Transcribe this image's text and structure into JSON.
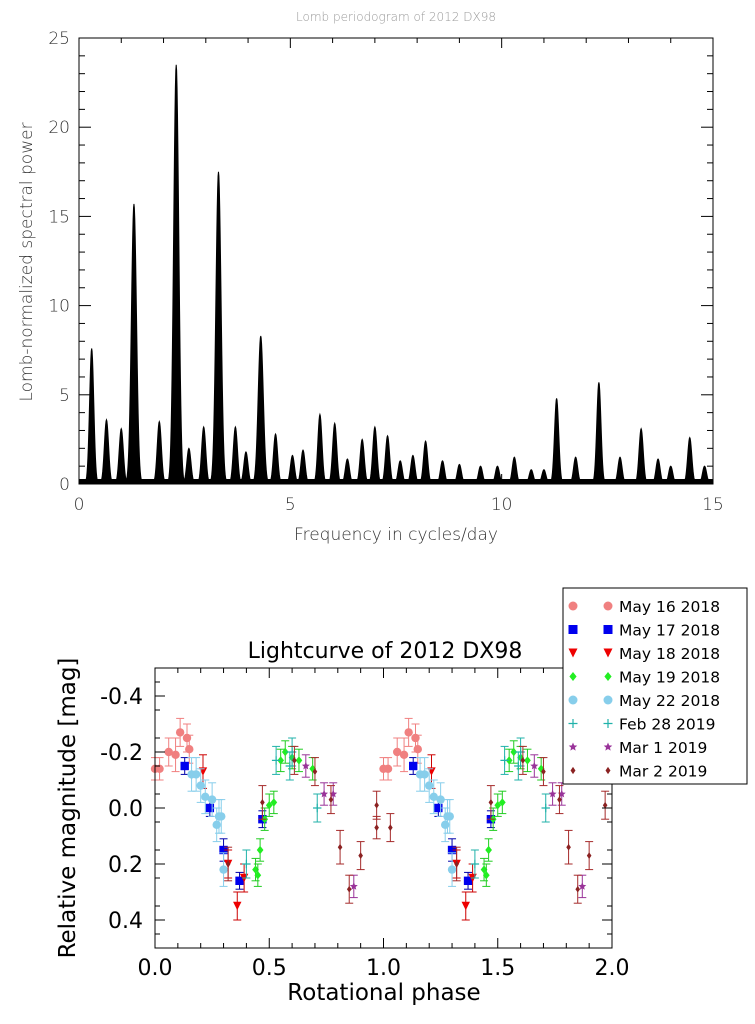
{
  "chart_data": [
    {
      "type": "line",
      "title": "Lomb periodogram of 2012 DX98",
      "xlabel": "Frequency in cycles/day",
      "ylabel": "Lomb-normalized spectral power",
      "xlim": [
        0,
        15
      ],
      "ylim": [
        0,
        25
      ],
      "xticks": [
        "0",
        "5",
        "10",
        "15"
      ],
      "yticks": [
        "0",
        "5",
        "10",
        "15",
        "20",
        "25"
      ],
      "grid": false,
      "color": "#000000",
      "peaks": [
        {
          "x": 0.3,
          "y": 7.6
        },
        {
          "x": 0.65,
          "y": 3.6
        },
        {
          "x": 1.0,
          "y": 3.1
        },
        {
          "x": 1.3,
          "y": 15.7
        },
        {
          "x": 1.9,
          "y": 3.5
        },
        {
          "x": 2.3,
          "y": 23.5
        },
        {
          "x": 2.6,
          "y": 2.0
        },
        {
          "x": 2.95,
          "y": 3.2
        },
        {
          "x": 3.3,
          "y": 17.5
        },
        {
          "x": 3.7,
          "y": 3.2
        },
        {
          "x": 3.95,
          "y": 1.8
        },
        {
          "x": 4.3,
          "y": 8.3
        },
        {
          "x": 4.65,
          "y": 2.8
        },
        {
          "x": 5.05,
          "y": 1.6
        },
        {
          "x": 5.3,
          "y": 1.9
        },
        {
          "x": 5.7,
          "y": 3.9
        },
        {
          "x": 6.05,
          "y": 3.4
        },
        {
          "x": 6.35,
          "y": 1.4
        },
        {
          "x": 6.7,
          "y": 2.5
        },
        {
          "x": 7.0,
          "y": 3.2
        },
        {
          "x": 7.3,
          "y": 2.7
        },
        {
          "x": 7.6,
          "y": 1.3
        },
        {
          "x": 7.9,
          "y": 1.6
        },
        {
          "x": 8.2,
          "y": 2.4
        },
        {
          "x": 8.6,
          "y": 1.3
        },
        {
          "x": 9.0,
          "y": 1.1
        },
        {
          "x": 9.5,
          "y": 1.0
        },
        {
          "x": 9.9,
          "y": 1.0
        },
        {
          "x": 10.3,
          "y": 1.5
        },
        {
          "x": 10.7,
          "y": 0.8
        },
        {
          "x": 11.0,
          "y": 0.8
        },
        {
          "x": 11.3,
          "y": 4.8
        },
        {
          "x": 11.75,
          "y": 1.5
        },
        {
          "x": 12.3,
          "y": 5.7
        },
        {
          "x": 12.8,
          "y": 1.5
        },
        {
          "x": 13.3,
          "y": 3.1
        },
        {
          "x": 13.7,
          "y": 1.4
        },
        {
          "x": 14.0,
          "y": 1.0
        },
        {
          "x": 14.45,
          "y": 2.6
        },
        {
          "x": 14.8,
          "y": 1.0
        }
      ]
    },
    {
      "type": "scatter",
      "title": "Lightcurve of 2012 DX98",
      "xlabel": "Rotational phase",
      "ylabel": "Relative magnitude [mag]",
      "xlim": [
        0.0,
        2.0
      ],
      "ylim": [
        0.5,
        -0.5
      ],
      "xticks": [
        "0.0",
        "0.5",
        "1.0",
        "1.5",
        "2.0"
      ],
      "yticks": [
        "-0.4",
        "-0.2",
        "0.0",
        "0.2",
        "0.4"
      ],
      "legend_position": "top-right",
      "series": [
        {
          "name": "May 16 2018",
          "color": "#f08080",
          "marker": "circle",
          "err_color": "#f08080",
          "points": [
            [
              0.0,
              -0.14,
              0.04
            ],
            [
              0.02,
              -0.14,
              0.04
            ],
            [
              0.06,
              -0.2,
              0.05
            ],
            [
              0.09,
              -0.19,
              0.06
            ],
            [
              0.11,
              -0.27,
              0.05
            ],
            [
              0.14,
              -0.25,
              0.05
            ],
            [
              0.15,
              -0.21,
              0.05
            ]
          ]
        },
        {
          "name": "May 17 2018",
          "color": "#0000ee",
          "marker": "square",
          "err_color": "#0000aa",
          "points": [
            [
              0.13,
              -0.15,
              0.03
            ],
            [
              0.24,
              0.0,
              0.03
            ],
            [
              0.3,
              0.15,
              0.04
            ],
            [
              0.37,
              0.26,
              0.03
            ],
            [
              0.47,
              0.04,
              0.03
            ]
          ]
        },
        {
          "name": "May 18 2018",
          "color": "#ee0000",
          "marker": "triangle",
          "err_color": "#cc0000",
          "points": [
            [
              0.21,
              -0.13,
              0.06
            ],
            [
              0.32,
              0.2,
              0.05
            ],
            [
              0.36,
              0.35,
              0.05
            ],
            [
              0.39,
              0.25,
              0.05
            ]
          ]
        },
        {
          "name": "May 19 2018",
          "color": "#22ee22",
          "marker": "diamond",
          "err_color": "#22cc22",
          "points": [
            [
              0.44,
              0.22,
              0.04
            ],
            [
              0.45,
              0.24,
              0.04
            ],
            [
              0.46,
              0.15,
              0.04
            ],
            [
              0.48,
              0.04,
              0.04
            ],
            [
              0.5,
              -0.01,
              0.04
            ],
            [
              0.52,
              -0.02,
              0.04
            ],
            [
              0.55,
              -0.17,
              0.04
            ],
            [
              0.57,
              -0.2,
              0.04
            ],
            [
              0.6,
              -0.18,
              0.04
            ],
            [
              0.63,
              -0.17,
              0.04
            ],
            [
              0.69,
              -0.14,
              0.04
            ]
          ]
        },
        {
          "name": "May 22 2018",
          "color": "#87ceeb",
          "marker": "circle",
          "err_color": "#87ceeb",
          "points": [
            [
              0.16,
              -0.12,
              0.06
            ],
            [
              0.18,
              -0.12,
              0.06
            ],
            [
              0.2,
              -0.08,
              0.06
            ],
            [
              0.22,
              -0.04,
              0.06
            ],
            [
              0.25,
              -0.03,
              0.06
            ],
            [
              0.27,
              0.06,
              0.06
            ],
            [
              0.28,
              0.03,
              0.06
            ],
            [
              0.29,
              0.03,
              0.06
            ],
            [
              0.3,
              0.22,
              0.06
            ]
          ]
        },
        {
          "name": "Feb 28 2019",
          "color": "#20b2aa",
          "marker": "plus",
          "err_color": "#20b2aa",
          "points": [
            [
              0.4,
              0.2,
              0.05
            ],
            [
              0.53,
              -0.17,
              0.05
            ],
            [
              0.59,
              -0.15,
              0.05
            ],
            [
              0.71,
              0.0,
              0.05
            ],
            [
              0.6,
              -0.2,
              0.05
            ]
          ]
        },
        {
          "name": "Mar 1 2019",
          "color": "#993399",
          "marker": "star",
          "err_color": "#993399",
          "points": [
            [
              0.66,
              -0.15,
              0.04
            ],
            [
              0.74,
              -0.05,
              0.04
            ],
            [
              0.78,
              -0.05,
              0.04
            ],
            [
              0.87,
              0.28,
              0.04
            ]
          ]
        },
        {
          "name": "Mar 2 2019",
          "color": "#8b2222",
          "marker": "diamond-small",
          "err_color": "#a52a2a",
          "points": [
            [
              -0.03,
              0.07,
              0.04
            ],
            [
              0.32,
              0.2,
              0.06
            ],
            [
              0.47,
              -0.02,
              0.06
            ],
            [
              0.61,
              -0.17,
              0.05
            ],
            [
              0.7,
              -0.13,
              0.05
            ],
            [
              0.77,
              -0.03,
              0.05
            ],
            [
              0.81,
              0.14,
              0.06
            ],
            [
              0.85,
              0.29,
              0.05
            ],
            [
              0.9,
              0.17,
              0.05
            ],
            [
              0.97,
              -0.01,
              0.05
            ],
            [
              1.03,
              0.07,
              0.05
            ]
          ]
        }
      ]
    }
  ]
}
